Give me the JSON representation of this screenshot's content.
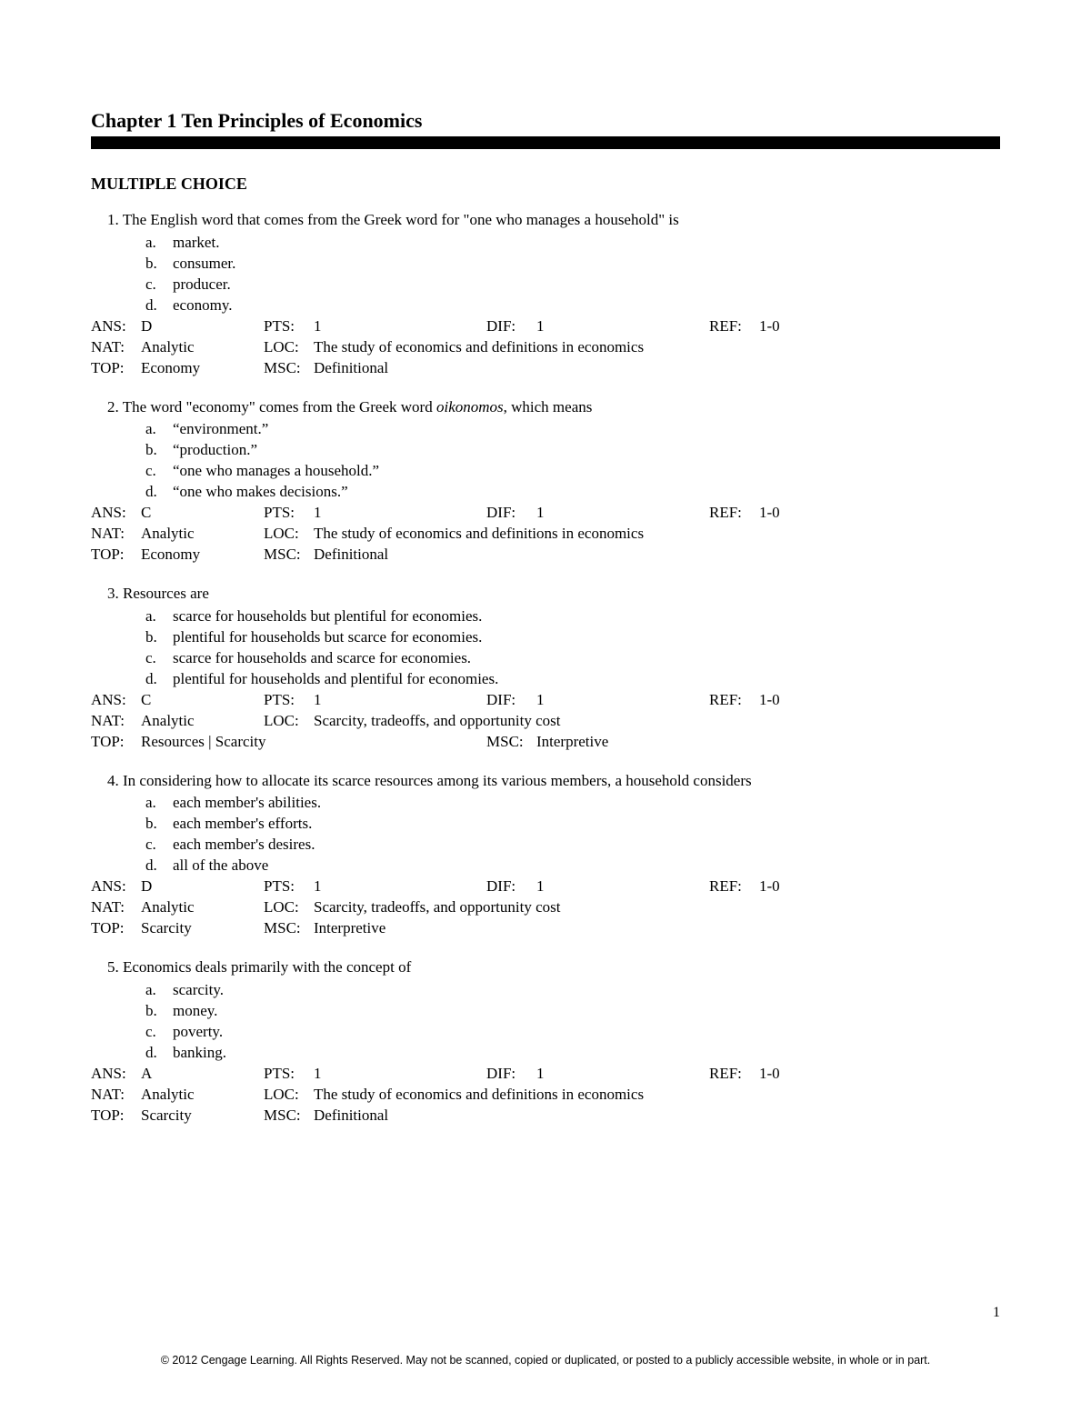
{
  "chapter_title": "Chapter 1 Ten Principles of Economics",
  "section_title": "MULTIPLE CHOICE",
  "questions": [
    {
      "num": "1.",
      "stem": "The English word that comes from the Greek word for \"one who manages a household\" is",
      "options": [
        {
          "letter": "a.",
          "text": "market."
        },
        {
          "letter": "b.",
          "text": "consumer."
        },
        {
          "letter": "c.",
          "text": "producer."
        },
        {
          "letter": "d.",
          "text": "economy."
        }
      ],
      "ans": "D",
      "pts": "1",
      "dif": "1",
      "ref": "1-0",
      "nat": "Analytic",
      "loc": "The study of economics and definitions in economics",
      "top": "Economy",
      "msc": "Definitional"
    },
    {
      "num": "2.",
      "stem_pre": "The word \"economy\" comes from the Greek word ",
      "stem_italic": "oikonomos",
      "stem_post": ", which means",
      "options": [
        {
          "letter": "a.",
          "text": "“environment.”"
        },
        {
          "letter": "b.",
          "text": "“production.”"
        },
        {
          "letter": "c.",
          "text": "“one who manages a household.”"
        },
        {
          "letter": "d.",
          "text": "“one who makes decisions.”"
        }
      ],
      "ans": "C",
      "pts": "1",
      "dif": "1",
      "ref": "1-0",
      "nat": "Analytic",
      "loc": "The study of economics and definitions in economics",
      "top": "Economy",
      "msc": "Definitional"
    },
    {
      "num": "3.",
      "stem": "Resources are",
      "options": [
        {
          "letter": "a.",
          "text": "scarce for households but plentiful for economies."
        },
        {
          "letter": "b.",
          "text": "plentiful for households but scarce for economies."
        },
        {
          "letter": "c.",
          "text": "scarce for households and scarce for economies."
        },
        {
          "letter": "d.",
          "text": "plentiful for households and plentiful for economies."
        }
      ],
      "ans": "C",
      "pts": "1",
      "dif": "1",
      "ref": "1-0",
      "nat": "Analytic",
      "loc": "Scarcity, tradeoffs, and opportunity cost",
      "top": "Resources | Scarcity",
      "msc": "Interpretive",
      "msc_wide": true
    },
    {
      "num": "4.",
      "stem": "In considering how to allocate its scarce resources among its various members, a household considers",
      "options": [
        {
          "letter": "a.",
          "text": "each member's abilities."
        },
        {
          "letter": "b.",
          "text": "each member's efforts."
        },
        {
          "letter": "c.",
          "text": "each member's desires."
        },
        {
          "letter": "d.",
          "text": "all of the above"
        }
      ],
      "ans": "D",
      "pts": "1",
      "dif": "1",
      "ref": "1-0",
      "nat": "Analytic",
      "loc": "Scarcity, tradeoffs, and opportunity cost",
      "top": "Scarcity",
      "msc": "Interpretive"
    },
    {
      "num": "5.",
      "stem": "Economics deals primarily with the concept of",
      "options": [
        {
          "letter": "a.",
          "text": "scarcity."
        },
        {
          "letter": "b.",
          "text": "money."
        },
        {
          "letter": "c.",
          "text": "poverty."
        },
        {
          "letter": "d.",
          "text": "banking."
        }
      ],
      "ans": "A",
      "pts": "1",
      "dif": "1",
      "ref": "1-0",
      "nat": "Analytic",
      "loc": "The study of economics and definitions in economics",
      "top": "Scarcity",
      "msc": "Definitional"
    }
  ],
  "labels": {
    "ans": "ANS:",
    "pts": "PTS:",
    "dif": "DIF:",
    "ref": "REF:",
    "nat": "NAT:",
    "loc": "LOC:",
    "top": "TOP:",
    "msc": "MSC:"
  },
  "page_number": "1",
  "copyright": "© 2012 Cengage Learning. All Rights Reserved. May not be scanned, copied or duplicated, or posted to a publicly accessible website, in whole or in part.",
  "colors": {
    "background": "#ffffff",
    "text": "#000000",
    "bar": "#000000"
  },
  "typography": {
    "body_font": "Times New Roman",
    "body_size_pt": 12,
    "title_size_pt": 16,
    "copyright_font": "Arial",
    "copyright_size_pt": 9
  }
}
